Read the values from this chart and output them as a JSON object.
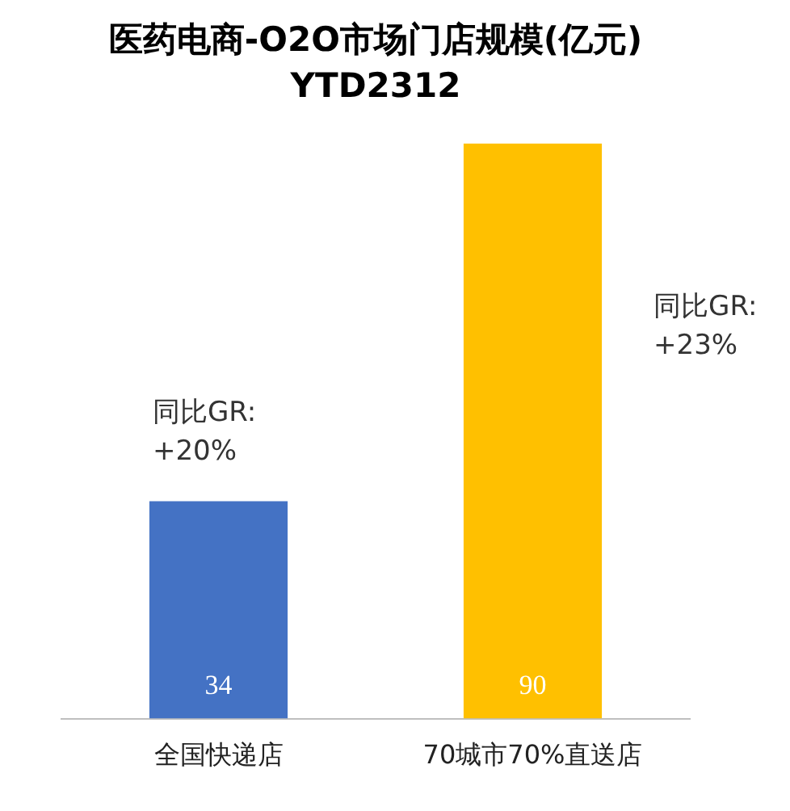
{
  "chart_data": {
    "type": "bar",
    "title": "医药电商-O2O市场门店规模(亿元)\nYTD2312",
    "categories": [
      "全国快递店",
      "70城市70%直送店"
    ],
    "values": [
      34,
      90
    ],
    "colors": [
      "#4472c4",
      "#ffc000"
    ],
    "data_labels": true,
    "grid": false,
    "legend": false,
    "annotations": [
      "同比GR:\n+20%",
      "同比GR:\n+23%"
    ]
  }
}
